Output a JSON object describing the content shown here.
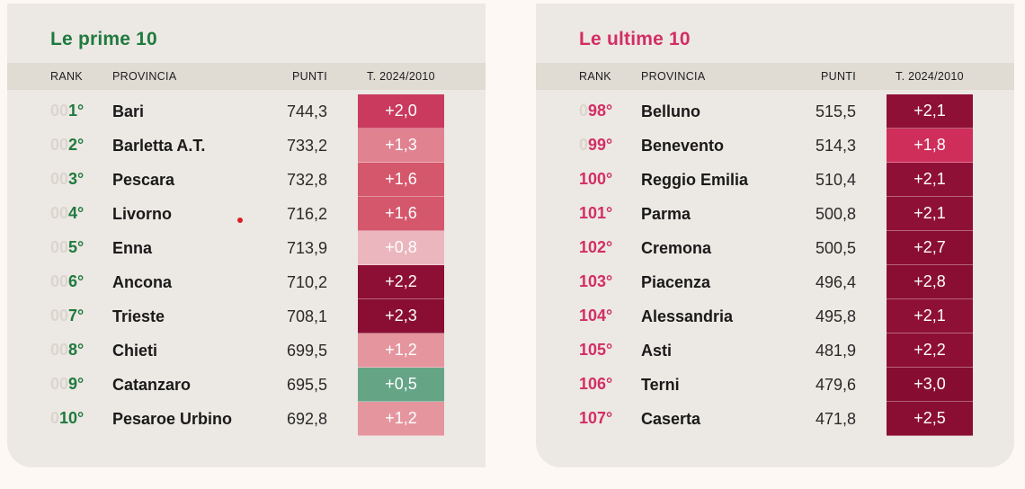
{
  "colors": {
    "top_accent": "#1f7a3f",
    "bottom_accent": "#d22e66",
    "card_bg": "#ece8e3",
    "header_bg": "#e0dbd3",
    "page_bg": "#fdf8f4"
  },
  "headers": {
    "rank": "RANK",
    "province": "PROVINCIA",
    "points": "PUNTI",
    "trend": "T. 2024/2010"
  },
  "top": {
    "title": "Le prime 10",
    "rows": [
      {
        "pad": "00",
        "rank": "1°",
        "province": "Bari",
        "points": "744,3",
        "trend": "+2,0",
        "trend_color": "#c93a5e"
      },
      {
        "pad": "00",
        "rank": "2°",
        "province": "Barletta A.T.",
        "points": "733,2",
        "trend": "+1,3",
        "trend_color": "#e0828f"
      },
      {
        "pad": "00",
        "rank": "3°",
        "province": "Pescara",
        "points": "732,8",
        "trend": "+1,6",
        "trend_color": "#d5576c"
      },
      {
        "pad": "00",
        "rank": "4°",
        "province": "Livorno",
        "points": "716,2",
        "trend": "+1,6",
        "trend_color": "#d5576c"
      },
      {
        "pad": "00",
        "rank": "5°",
        "province": "Enna",
        "points": "713,9",
        "trend": "+0,8",
        "trend_color": "#ebb6bd"
      },
      {
        "pad": "00",
        "rank": "6°",
        "province": "Ancona",
        "points": "710,2",
        "trend": "+2,2",
        "trend_color": "#8e0f35"
      },
      {
        "pad": "00",
        "rank": "7°",
        "province": "Trieste",
        "points": "708,1",
        "trend": "+2,3",
        "trend_color": "#8a0e33"
      },
      {
        "pad": "00",
        "rank": "8°",
        "province": "Chieti",
        "points": "699,5",
        "trend": "+1,2",
        "trend_color": "#e5959e"
      },
      {
        "pad": "00",
        "rank": "9°",
        "province": "Catanzaro",
        "points": "695,5",
        "trend": "+0,5",
        "trend_color": "#65a586"
      },
      {
        "pad": "0",
        "rank": "10°",
        "province": "Pesaroe Urbino",
        "points": "692,8",
        "trend": "+1,2",
        "trend_color": "#e5959e"
      }
    ]
  },
  "bottom": {
    "title": "Le ultime 10",
    "rows": [
      {
        "pad": "0",
        "rank": "98°",
        "province": "Belluno",
        "points": "515,5",
        "trend": "+2,1",
        "trend_color": "#8f1036"
      },
      {
        "pad": "0",
        "rank": "99°",
        "province": "Benevento",
        "points": "514,3",
        "trend": "+1,8",
        "trend_color": "#cf2e5b"
      },
      {
        "pad": "",
        "rank": "100°",
        "province": "Reggio Emilia",
        "points": "510,4",
        "trend": "+2,1",
        "trend_color": "#8f1036"
      },
      {
        "pad": "",
        "rank": "101°",
        "province": "Parma",
        "points": "500,8",
        "trend": "+2,1",
        "trend_color": "#8f1036"
      },
      {
        "pad": "",
        "rank": "102°",
        "province": "Cremona",
        "points": "500,5",
        "trend": "+2,7",
        "trend_color": "#8a0e33"
      },
      {
        "pad": "",
        "rank": "103°",
        "province": "Piacenza",
        "points": "496,4",
        "trend": "+2,8",
        "trend_color": "#8a0e33"
      },
      {
        "pad": "",
        "rank": "104°",
        "province": "Alessandria",
        "points": "495,8",
        "trend": "+2,1",
        "trend_color": "#8f1036"
      },
      {
        "pad": "",
        "rank": "105°",
        "province": "Asti",
        "points": "481,9",
        "trend": "+2,2",
        "trend_color": "#8e0f35"
      },
      {
        "pad": "",
        "rank": "106°",
        "province": "Terni",
        "points": "479,6",
        "trend": "+3,0",
        "trend_color": "#860d31"
      },
      {
        "pad": "",
        "rank": "107°",
        "province": "Caserta",
        "points": "471,8",
        "trend": "+2,5",
        "trend_color": "#8a0e33"
      }
    ]
  }
}
